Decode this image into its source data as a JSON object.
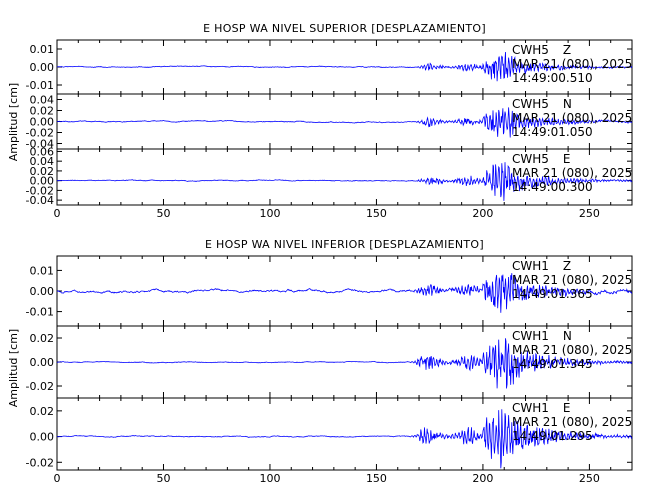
{
  "chart_data": [
    {
      "type": "line",
      "title": "E HOSP WA NIVEL SUPERIOR [DESPLAZAMIENTO]",
      "ylabel": "Amplitud [cm]",
      "xlim": [
        0,
        270
      ],
      "xticks": [
        "0",
        "50",
        "100",
        "150",
        "200",
        "250"
      ],
      "color": "#0000ff",
      "panels": [
        {
          "yticks": [
            "0.01",
            "0.00",
            "-0.01"
          ],
          "ylim": [
            -0.015,
            0.015
          ],
          "station": "CWH5",
          "component": "Z",
          "date": "MAR 21 (080), 2025",
          "time": "14:49:00.510",
          "amp": 0.0085,
          "noise": 0.00035,
          "onset": 168,
          "seed": 11
        },
        {
          "yticks": [
            "0.04",
            "0.02",
            "0.00",
            "-0.02",
            "-0.04"
          ],
          "ylim": [
            -0.05,
            0.05
          ],
          "station": "CWH5",
          "component": "N",
          "date": "MAR 21 (080), 2025",
          "time": "14:49:01.050",
          "amp": 0.032,
          "noise": 0.0012,
          "onset": 168,
          "seed": 23
        },
        {
          "yticks": [
            "0.06",
            "0.04",
            "0.02",
            "0.00",
            "-0.02",
            "-0.04"
          ],
          "ylim": [
            -0.05,
            0.065
          ],
          "station": "CWH5",
          "component": "E",
          "date": "MAR 21 (080), 2025",
          "time": "14:49:00.300",
          "amp": 0.04,
          "noise": 0.0012,
          "onset": 168,
          "seed": 37
        }
      ]
    },
    {
      "type": "line",
      "title": "E HOSP WA NIVEL INFERIOR [DESPLAZAMIENTO]",
      "ylabel": "Amplitud [cm]",
      "xlim": [
        0,
        270
      ],
      "xticks": [
        "0",
        "50",
        "100",
        "150",
        "200",
        "250"
      ],
      "color": "#0000ff",
      "panels": [
        {
          "yticks": [
            "0.01",
            "0.00",
            "-0.01"
          ],
          "ylim": [
            -0.017,
            0.017
          ],
          "station": "CWH1",
          "component": "Z",
          "date": "MAR 21 (080), 2025",
          "time": "14:49:01.365",
          "amp": 0.011,
          "noise": 0.0008,
          "onset": 165,
          "seed": 41
        },
        {
          "yticks": [
            "0.02",
            "0.00",
            "-0.02"
          ],
          "ylim": [
            -0.03,
            0.03
          ],
          "station": "CWH1",
          "component": "N",
          "date": "MAR 21 (080), 2025",
          "time": "14:49:01.345",
          "amp": 0.024,
          "noise": 0.0004,
          "onset": 165,
          "seed": 53
        },
        {
          "yticks": [
            "0.02",
            "0.00",
            "-0.02"
          ],
          "ylim": [
            -0.026,
            0.03
          ],
          "station": "CWH1",
          "component": "E",
          "date": "MAR 21 (080), 2025",
          "time": "14:49:01.295",
          "amp": 0.025,
          "noise": 0.0005,
          "onset": 165,
          "seed": 67
        }
      ]
    }
  ]
}
